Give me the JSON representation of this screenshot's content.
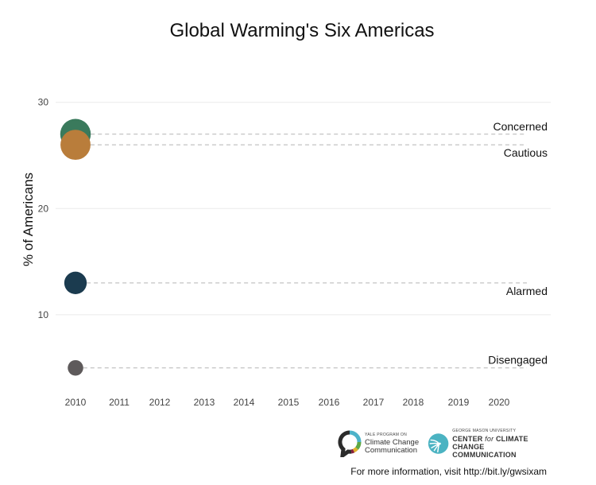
{
  "chart_data": {
    "type": "scatter",
    "title": "Global Warming's Six Americas",
    "xlabel": "",
    "ylabel": "% of Americans",
    "xlim": [
      2010,
      2020
    ],
    "ylim": [
      0,
      30
    ],
    "x_ticks": [
      "2010",
      "2011",
      "2012",
      "2013",
      "2014",
      "2015",
      "2016",
      "2017",
      "2018",
      "2019",
      "2020"
    ],
    "y_ticks": [
      "10",
      "20",
      "30"
    ],
    "y_tick_values": [
      10,
      20,
      30
    ],
    "grid": true,
    "legend": "none (direct labels at right)",
    "size_encodes_value": true,
    "series": [
      {
        "name": "Concerned",
        "x": [
          2010
        ],
        "values": [
          27
        ],
        "color": "#3a7a5c",
        "label_position": "above-line"
      },
      {
        "name": "Cautious",
        "x": [
          2010
        ],
        "values": [
          26
        ],
        "color": "#b97d3b",
        "label_position": "below-line"
      },
      {
        "name": "Alarmed",
        "x": [
          2010
        ],
        "values": [
          13
        ],
        "color": "#1b3b4f",
        "label_position": "below-line"
      },
      {
        "name": "Disengaged",
        "x": [
          2010
        ],
        "values": [
          5
        ],
        "color": "#5e5a5b",
        "label_position": "above-line"
      }
    ]
  },
  "logos": {
    "yale": {
      "small": "YALE PROGRAM ON",
      "line1": "Climate Change",
      "line2": "Communication"
    },
    "gmu": {
      "small": "GEORGE MASON UNIVERSITY",
      "line1_a": "CENTER ",
      "line1_b": "for",
      "line1_c": " CLIMATE CHANGE",
      "line2": "COMMUNICATION"
    }
  },
  "footer": "For more information, visit http://bit.ly/gwsixam"
}
